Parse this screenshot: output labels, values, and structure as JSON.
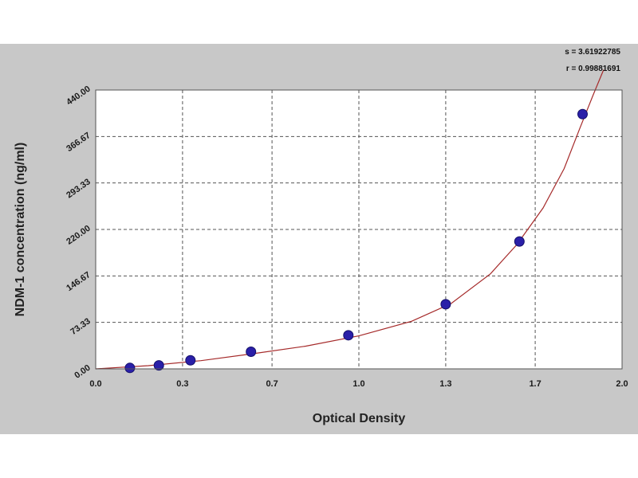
{
  "colors": {
    "panel_background": "#c8c8c8",
    "plot_background": "#ffffff",
    "curve": "#a52a2a",
    "points": "#2a1fa8",
    "grid": "#555555"
  },
  "stats": {
    "s_label": "s = 3.61922785",
    "r_label": "r = 0.99881691"
  },
  "chart_data": {
    "type": "scatter",
    "xlabel": "Optical Density",
    "ylabel": "NDM-1 concentration (ng/ml)",
    "xlim": [
      0.0,
      2.0
    ],
    "ylim": [
      0.0,
      440.0
    ],
    "x_ticks": [
      0.0,
      0.33,
      0.67,
      1.0,
      1.33,
      1.67,
      2.0
    ],
    "x_tick_labels": [
      "0.0",
      "0.3",
      "0.7",
      "1.0",
      "1.3",
      "1.7",
      "2.0"
    ],
    "y_ticks": [
      0.0,
      73.33,
      146.67,
      220.0,
      293.33,
      366.67,
      440.0
    ],
    "y_tick_labels": [
      "0.00",
      "73.33",
      "146.67",
      "220.00",
      "293.33",
      "366.67",
      "440.00"
    ],
    "grid": true,
    "series": [
      {
        "points": [
          {
            "x": 0.13,
            "y": 1.5
          },
          {
            "x": 0.24,
            "y": 5.5
          },
          {
            "x": 0.36,
            "y": 13.5
          },
          {
            "x": 0.59,
            "y": 27.0
          },
          {
            "x": 0.96,
            "y": 53.0
          },
          {
            "x": 1.33,
            "y": 102.0
          },
          {
            "x": 1.61,
            "y": 201.0
          },
          {
            "x": 1.85,
            "y": 402.0
          }
        ]
      }
    ],
    "fit_curve": {
      "x": [
        0.0,
        0.2,
        0.4,
        0.6,
        0.8,
        1.0,
        1.2,
        1.35,
        1.5,
        1.6,
        1.7,
        1.78,
        1.84,
        1.89,
        1.93
      ],
      "y": [
        0.0,
        5.0,
        13.0,
        24.0,
        36.0,
        52.0,
        75.0,
        103.0,
        150.0,
        196.0,
        254.0,
        316.0,
        380.0,
        432.0,
        472.0
      ]
    }
  }
}
